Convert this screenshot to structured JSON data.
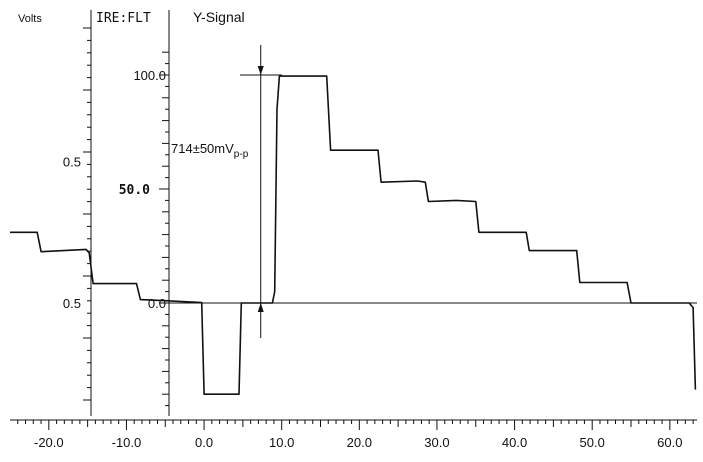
{
  "chart_data": {
    "type": "line",
    "title": "Y-Signal",
    "left_axis_title": "Volts",
    "ire_axis_title": "IRE:FLT",
    "x_ticks": [
      "-20.0",
      "-10.0",
      "0.0",
      "10.0",
      "20.0",
      "30.0",
      "40.0",
      "50.0",
      "60.0"
    ],
    "x_range": [
      -25,
      63.5
    ],
    "y_range_ire": [
      -45,
      110
    ],
    "volts_labels": [
      {
        "text": "0.5",
        "ire": 62
      },
      {
        "text": "0.5",
        "ire": 0
      }
    ],
    "ire_labels": [
      {
        "text": "100.0",
        "ire": 100
      },
      {
        "text": "50.0",
        "ire": 50
      },
      {
        "text": "0.0",
        "ire": 0
      }
    ],
    "annotation": {
      "text": "714±50mV",
      "subscript": "p-p",
      "x": 7.3,
      "ire_top": 100,
      "ire_bottom": 0
    },
    "reference_line_ire": 0,
    "series": [
      {
        "values": [
          [
            -25,
            31
          ],
          [
            -21.5,
            31
          ],
          [
            -21,
            22.5
          ],
          [
            -15.2,
            23.5
          ],
          [
            -14.8,
            22
          ],
          [
            -14.3,
            8.5
          ],
          [
            -8.7,
            8.5
          ],
          [
            -8.2,
            1.5
          ],
          [
            -5,
            1
          ],
          [
            -0.3,
            0.2
          ],
          [
            0,
            -40
          ],
          [
            4.5,
            -40
          ],
          [
            4.8,
            0
          ],
          [
            8.8,
            0
          ],
          [
            9.1,
            5
          ],
          [
            9.4,
            85
          ],
          [
            9.7,
            99.5
          ],
          [
            15.8,
            99.5
          ],
          [
            16.3,
            67
          ],
          [
            22.4,
            67
          ],
          [
            22.8,
            53
          ],
          [
            27.5,
            53.5
          ],
          [
            28.5,
            53
          ],
          [
            28.9,
            44.5
          ],
          [
            32.5,
            45
          ],
          [
            35,
            44.5
          ],
          [
            35.4,
            31
          ],
          [
            41.5,
            31
          ],
          [
            41.9,
            23
          ],
          [
            48,
            23
          ],
          [
            48.4,
            9
          ],
          [
            54.5,
            9
          ],
          [
            55,
            0
          ],
          [
            62.5,
            0
          ],
          [
            63,
            -2
          ],
          [
            63.3,
            -38
          ]
        ]
      }
    ]
  }
}
